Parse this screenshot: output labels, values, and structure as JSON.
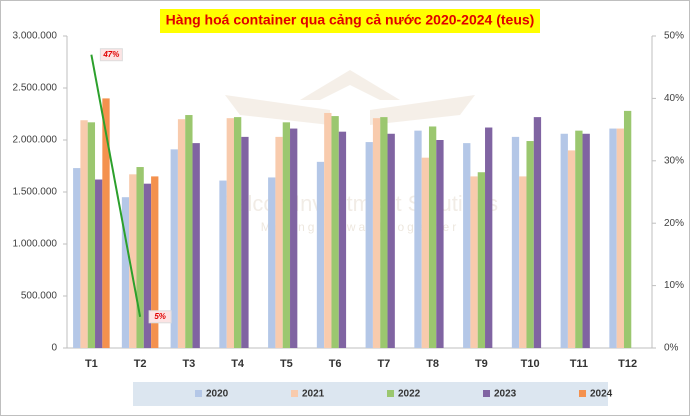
{
  "chart_data": {
    "type": "bar",
    "title": "Hàng hoá container qua cảng cả nước 2020-2024 (teus)",
    "watermark": "Falcon Investment Solutions",
    "watermark_tagline": "Moving forward together",
    "categories": [
      "T1",
      "T2",
      "T3",
      "T4",
      "T5",
      "T6",
      "T7",
      "T8",
      "T9",
      "T10",
      "T11",
      "T12"
    ],
    "series": [
      {
        "name": "2020",
        "color": "#b4c7e7",
        "values": [
          1730000,
          1450000,
          1910000,
          1610000,
          1640000,
          1790000,
          1980000,
          2090000,
          1970000,
          2030000,
          2060000,
          2110000
        ]
      },
      {
        "name": "2021",
        "color": "#f8cbad",
        "values": [
          2190000,
          1670000,
          2200000,
          2210000,
          2030000,
          2260000,
          2210000,
          1830000,
          1650000,
          1650000,
          1900000,
          2110000
        ]
      },
      {
        "name": "2022",
        "color": "#9bc76f",
        "values": [
          2170000,
          1740000,
          2240000,
          2220000,
          2170000,
          2230000,
          2220000,
          2130000,
          1690000,
          1990000,
          2090000,
          2280000
        ]
      },
      {
        "name": "2023",
        "color": "#8064a2",
        "values": [
          1620000,
          1580000,
          1970000,
          2030000,
          2110000,
          2080000,
          2060000,
          2000000,
          2120000,
          2220000,
          2060000,
          null
        ]
      },
      {
        "name": "2024",
        "color": "#f4914e",
        "values": [
          2400000,
          1650000,
          null,
          null,
          null,
          null,
          null,
          null,
          null,
          null,
          null,
          null
        ]
      }
    ],
    "growth_line": {
      "type": "line",
      "axis": "y2",
      "color": "#2ca02c",
      "values": [
        47,
        5,
        null,
        null,
        null,
        null,
        null,
        null,
        null,
        null,
        null,
        null
      ],
      "value_labels": [
        "47%",
        "5%",
        null,
        null,
        null,
        null,
        null,
        null,
        null,
        null,
        null,
        null
      ]
    },
    "ylim": [
      0,
      3000000
    ],
    "yticks": [
      0,
      {
        "value": 500000,
        "label": "500.000"
      },
      {
        "value": 1000000,
        "label": "1.000.000"
      },
      {
        "value": 1500000,
        "label": "1.500.000"
      },
      {
        "value": 2000000,
        "label": "2.000.000"
      },
      {
        "value": 2500000,
        "label": "2.500.000"
      },
      {
        "value": 3000000,
        "label": "3.000.000"
      }
    ],
    "y2lim": [
      0,
      50
    ],
    "y2ticks": [
      {
        "value": 0,
        "label": "0%"
      },
      {
        "value": 10,
        "label": "10%"
      },
      {
        "value": 20,
        "label": "20%"
      },
      {
        "value": 30,
        "label": "30%"
      },
      {
        "value": 40,
        "label": "40%"
      },
      {
        "value": 50,
        "label": "50%"
      }
    ],
    "legend": "bottom"
  }
}
